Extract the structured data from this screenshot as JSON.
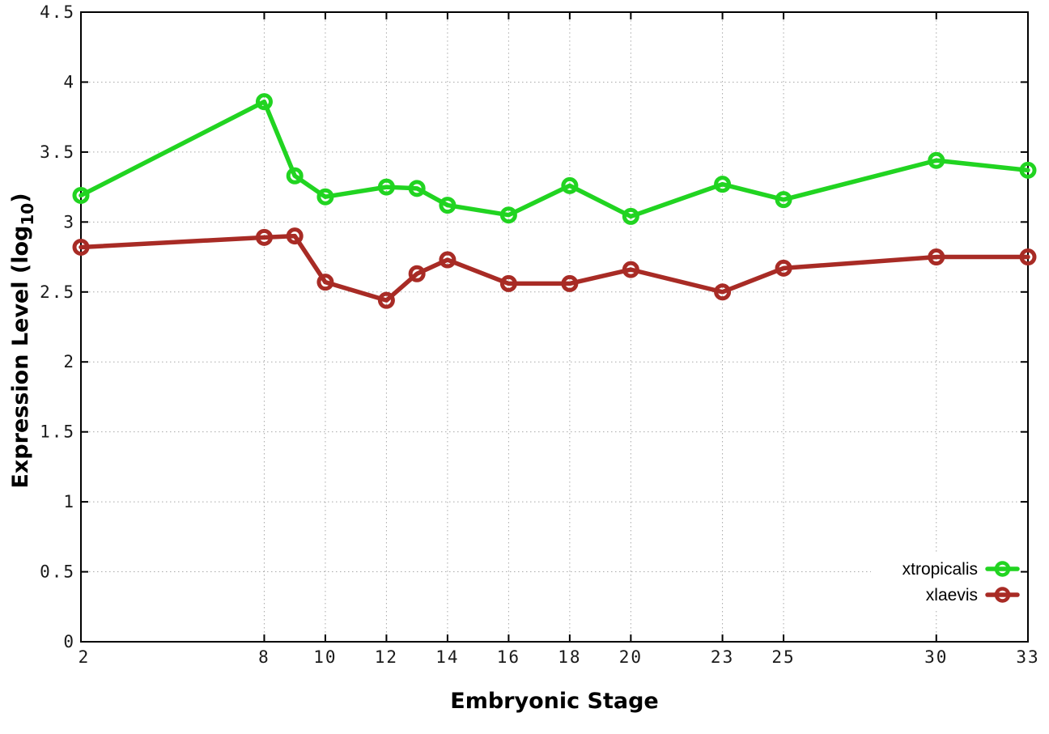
{
  "chart_data": {
    "type": "line",
    "title": "",
    "xlabel": "Embryonic Stage",
    "ylabel": {
      "main": "Expression Level (log",
      "sub": "10",
      "end": ")"
    },
    "xlim": [
      2,
      33
    ],
    "ylim": [
      0,
      4.5
    ],
    "grid": true,
    "x": [
      2,
      8,
      9,
      10,
      12,
      13,
      14,
      16,
      18,
      20,
      23,
      25,
      30,
      33
    ],
    "xtick_values": [
      2,
      8,
      10,
      12,
      14,
      16,
      18,
      20,
      23,
      25,
      30,
      33
    ],
    "xtick_labels": [
      "2",
      "8",
      "10",
      "12",
      "14",
      "16",
      "18",
      "20",
      "23",
      "25",
      "30",
      "33"
    ],
    "ytick_values": [
      0,
      0.5,
      1,
      1.5,
      2,
      2.5,
      3,
      3.5,
      4,
      4.5
    ],
    "ytick_labels": [
      "0",
      "0.5",
      "1",
      "1.5",
      "2",
      "2.5",
      "3",
      "3.5",
      "4",
      "4.5"
    ],
    "legend": {
      "position": "inside-bottom-right",
      "entries": [
        "xtropicalis",
        "xlaevis"
      ]
    },
    "series": [
      {
        "name": "xtropicalis",
        "color": "#21d421",
        "marker": "open-circle",
        "values": [
          3.19,
          3.86,
          3.33,
          3.18,
          3.25,
          3.24,
          3.12,
          3.05,
          3.26,
          3.04,
          3.27,
          3.16,
          3.44,
          3.37
        ]
      },
      {
        "name": "xlaevis",
        "color": "#a82b25",
        "marker": "open-circle",
        "values": [
          2.82,
          2.89,
          2.9,
          2.57,
          2.44,
          2.63,
          2.73,
          2.56,
          2.56,
          2.66,
          2.5,
          2.67,
          2.75,
          2.75
        ]
      }
    ],
    "colors": {
      "background": "#ffffff",
      "border": "#000000",
      "grid": "#a8a8a8",
      "tick_label": "#1a1a1a"
    }
  }
}
